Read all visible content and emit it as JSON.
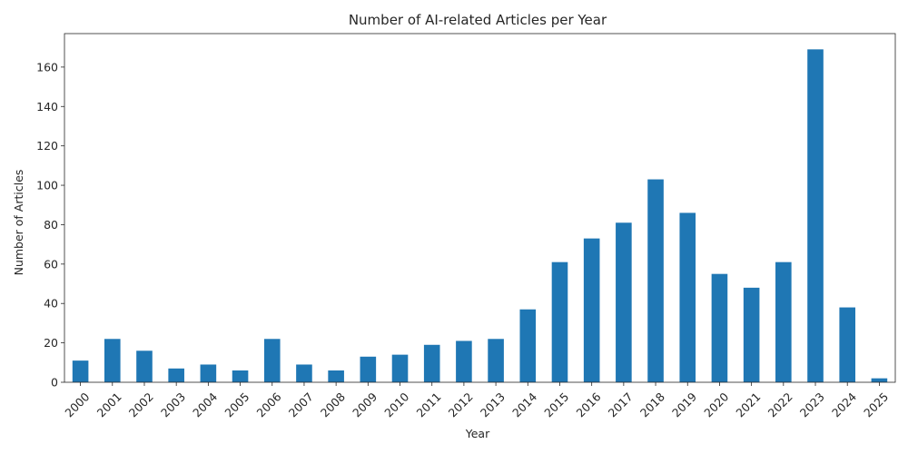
{
  "chart_data": {
    "type": "bar",
    "title": "Number of AI-related Articles per Year",
    "xlabel": "Year",
    "ylabel": "Number of Articles",
    "categories": [
      "2000",
      "2001",
      "2002",
      "2003",
      "2004",
      "2005",
      "2006",
      "2007",
      "2008",
      "2009",
      "2010",
      "2011",
      "2012",
      "2013",
      "2014",
      "2015",
      "2016",
      "2017",
      "2018",
      "2019",
      "2020",
      "2021",
      "2022",
      "2023",
      "2024",
      "2025"
    ],
    "values": [
      11,
      22,
      16,
      7,
      9,
      6,
      22,
      9,
      6,
      13,
      14,
      19,
      21,
      22,
      37,
      61,
      73,
      81,
      103,
      86,
      55,
      48,
      61,
      169,
      38,
      2
    ],
    "ylim": [
      0,
      177
    ],
    "yticks": [
      0,
      20,
      40,
      60,
      80,
      100,
      120,
      140,
      160
    ],
    "grid": false,
    "bar_color": "#1f77b4",
    "x_tick_rotation_deg": 45
  }
}
